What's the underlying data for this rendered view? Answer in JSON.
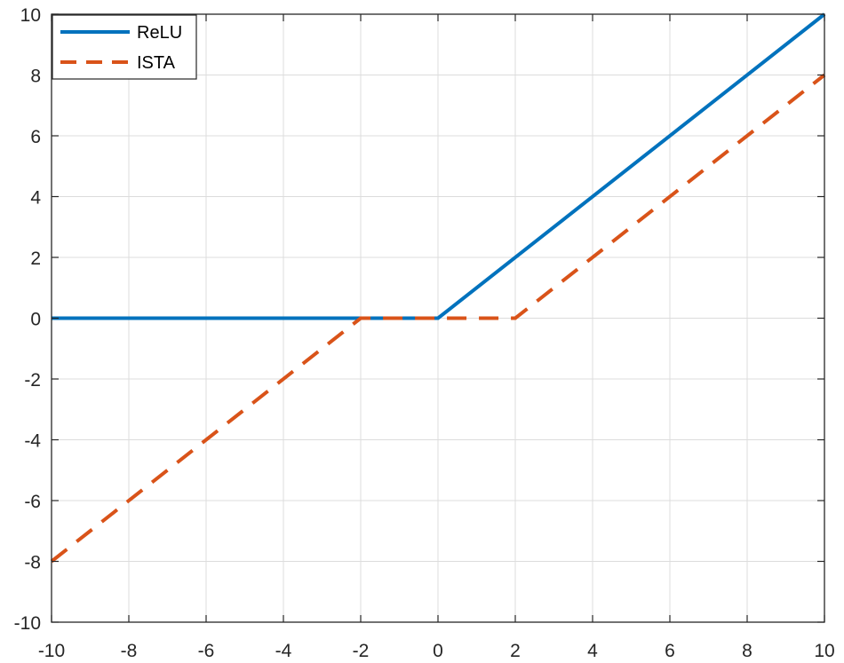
{
  "chart_data": {
    "type": "line",
    "title": "",
    "xlabel": "",
    "ylabel": "",
    "xlim": [
      -10,
      10
    ],
    "ylim": [
      -10,
      10
    ],
    "xticks": [
      -10,
      -8,
      -6,
      -4,
      -2,
      0,
      2,
      4,
      6,
      8,
      10
    ],
    "yticks": [
      -10,
      -8,
      -6,
      -4,
      -2,
      0,
      2,
      4,
      6,
      8,
      10
    ],
    "xtick_labels": [
      "-10",
      "-8",
      "-6",
      "-4",
      "-2",
      "0",
      "2",
      "4",
      "6",
      "8",
      "10"
    ],
    "ytick_labels": [
      "-10",
      "-8",
      "-6",
      "-4",
      "-2",
      "0",
      "2",
      "4",
      "6",
      "8",
      "10"
    ],
    "grid": true,
    "legend": "top-left",
    "series": [
      {
        "name": "ReLU",
        "color": "#0072BD",
        "style": "solid",
        "x": [
          -10,
          0,
          10
        ],
        "y": [
          0,
          0,
          10
        ]
      },
      {
        "name": "ISTA",
        "color": "#D95319",
        "style": "dashed",
        "x": [
          -10,
          -2,
          2,
          10
        ],
        "y": [
          -8,
          0,
          0,
          8
        ]
      }
    ]
  }
}
